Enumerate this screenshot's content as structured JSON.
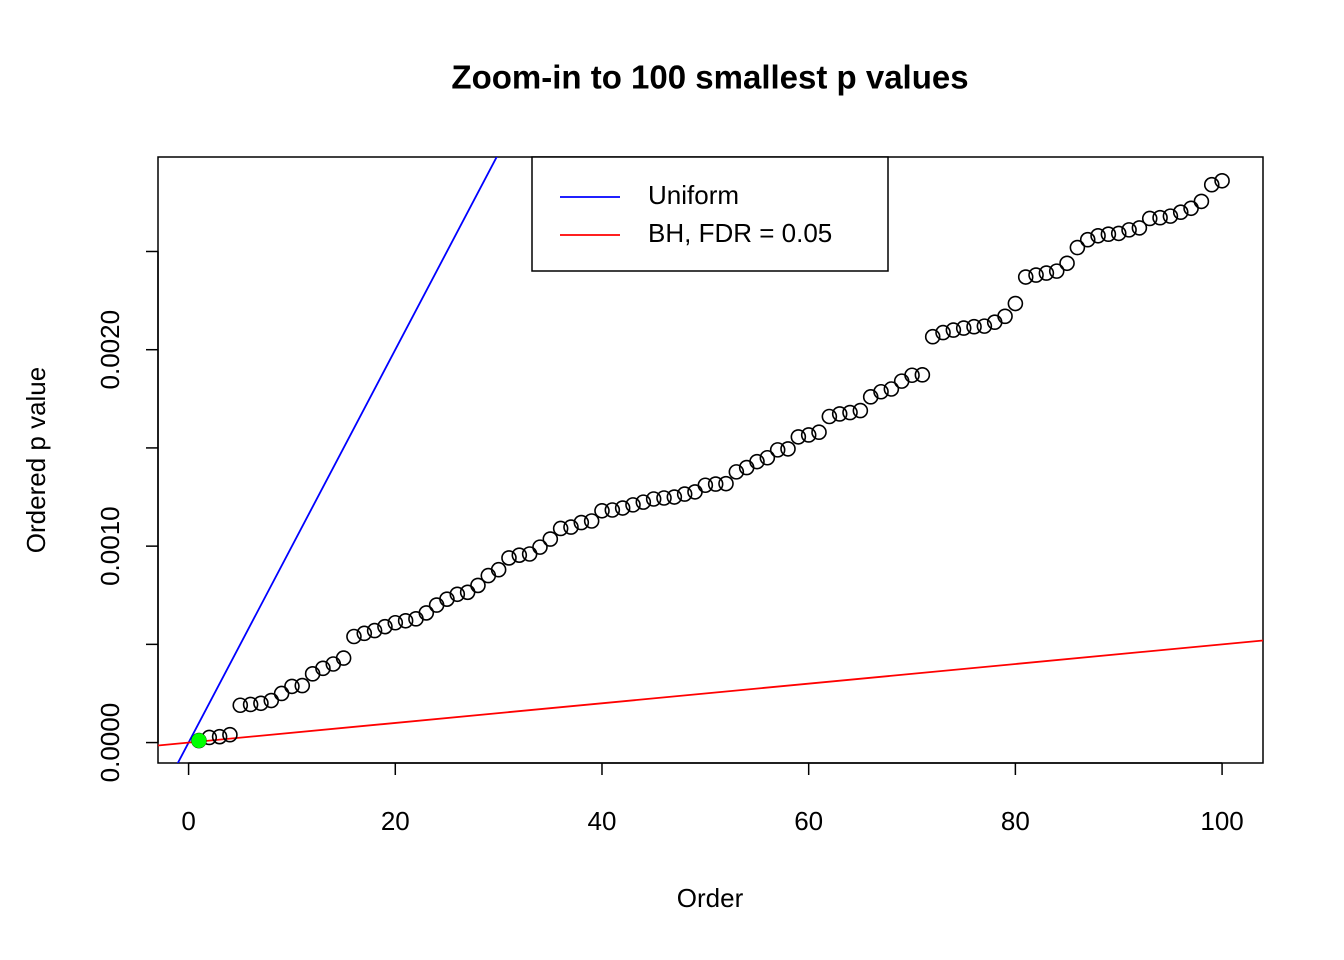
{
  "chart_data": {
    "type": "scatter",
    "title": "Zoom-in to 100 smallest p values",
    "x_label": "Order",
    "y_label": "Ordered p value",
    "xlim": [
      -2.96,
      103.96
    ],
    "ylim": [
      -0.000104,
      0.002981
    ],
    "xticks": [
      0,
      20,
      40,
      60,
      80,
      100
    ],
    "yticks": [
      {
        "value": 0,
        "label": "0.0000"
      },
      {
        "value": 0.0005,
        "label": null
      },
      {
        "value": 0.001,
        "label": "0.0010"
      },
      {
        "value": 0.0015,
        "label": null
      },
      {
        "value": 0.002,
        "label": "0.0020"
      },
      {
        "value": 0.0025,
        "label": null
      }
    ],
    "series": [
      {
        "color": "#000000",
        "x": [
          1,
          2,
          3,
          4,
          5,
          6,
          7,
          8,
          9,
          10,
          11,
          12,
          13,
          14,
          15,
          16,
          17,
          18,
          19,
          20,
          21,
          22,
          23,
          24,
          25,
          26,
          27,
          28,
          29,
          30,
          31,
          32,
          33,
          34,
          35,
          36,
          37,
          38,
          39,
          40,
          41,
          42,
          43,
          44,
          45,
          46,
          47,
          48,
          49,
          50,
          51,
          52,
          53,
          54,
          55,
          56,
          57,
          58,
          59,
          60,
          61,
          62,
          63,
          64,
          65,
          66,
          67,
          68,
          69,
          70,
          71,
          72,
          73,
          74,
          75,
          76,
          77,
          78,
          79,
          80,
          81,
          82,
          83,
          84,
          85,
          86,
          87,
          88,
          89,
          90,
          91,
          92,
          93,
          94,
          95,
          96,
          97,
          98,
          99,
          100
        ],
        "values": [
          1e-05,
          2.6e-05,
          3e-05,
          4e-05,
          0.00019,
          0.000194,
          0.0002,
          0.000214,
          0.00025,
          0.000286,
          0.00029,
          0.00035,
          0.000378,
          0.0004,
          0.00043,
          0.00054,
          0.000556,
          0.00057,
          0.00059,
          0.00061,
          0.00062,
          0.00063,
          0.00066,
          0.0007,
          0.00073,
          0.000755,
          0.000765,
          0.0008,
          0.00085,
          0.00088,
          0.00094,
          0.000954,
          0.00096,
          0.000995,
          0.001036,
          0.00109,
          0.001097,
          0.00112,
          0.001128,
          0.00118,
          0.001184,
          0.001194,
          0.00121,
          0.001224,
          0.00124,
          0.001245,
          0.00125,
          0.001265,
          0.001276,
          0.00131,
          0.001316,
          0.001318,
          0.001378,
          0.0014,
          0.00143,
          0.00145,
          0.00149,
          0.001495,
          0.001556,
          0.001566,
          0.00158,
          0.00166,
          0.001673,
          0.00168,
          0.00169,
          0.00176,
          0.001786,
          0.0018,
          0.00184,
          0.00187,
          0.001872,
          0.002066,
          0.002087,
          0.0021,
          0.00211,
          0.002117,
          0.00212,
          0.00214,
          0.00217,
          0.002235,
          0.00237,
          0.00238,
          0.00239,
          0.0024,
          0.00244,
          0.00252,
          0.00256,
          0.00258,
          0.002588,
          0.002592,
          0.00261,
          0.00262,
          0.002668,
          0.002672,
          0.00268,
          0.0027,
          0.00272,
          0.002755,
          0.00284,
          0.00286
        ]
      }
    ],
    "highlight": {
      "x": [
        1
      ],
      "values": [
        1e-05
      ],
      "color": "#00ff00"
    },
    "lines": [
      {
        "name": "Uniform",
        "color": "#0000ff",
        "slope": 0.0001,
        "intercept": 0
      },
      {
        "name": "BH, FDR = 0.05",
        "color": "#ff0000",
        "slope": 5e-06,
        "intercept": 0
      }
    ]
  }
}
